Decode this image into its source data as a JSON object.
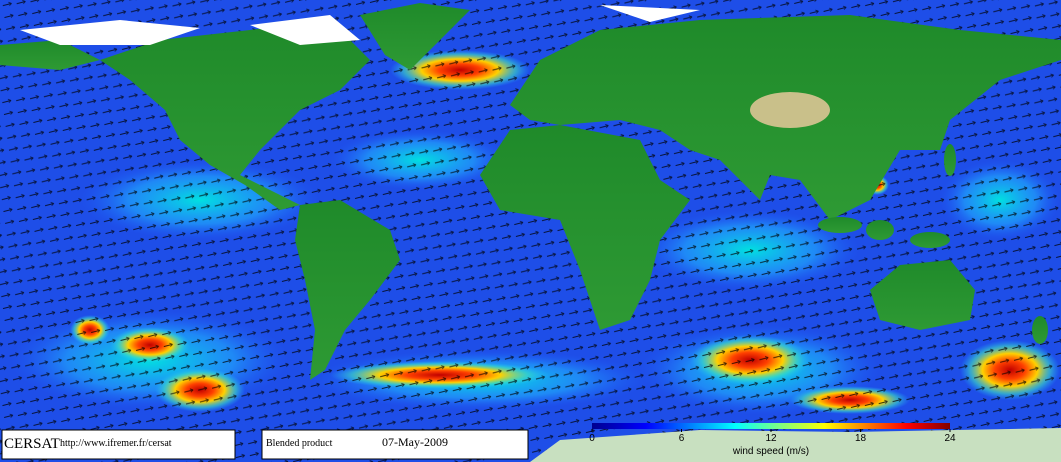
{
  "footer": {
    "logo": "CERSAT",
    "url": "http://www.ifremer.fr/cersat",
    "product": "Blended product",
    "date": "07-May-2009"
  },
  "colorbar": {
    "label": "wind speed (m/s)",
    "lim": [
      0,
      24
    ],
    "ticks": [
      0,
      6,
      12,
      18,
      24
    ]
  }
}
